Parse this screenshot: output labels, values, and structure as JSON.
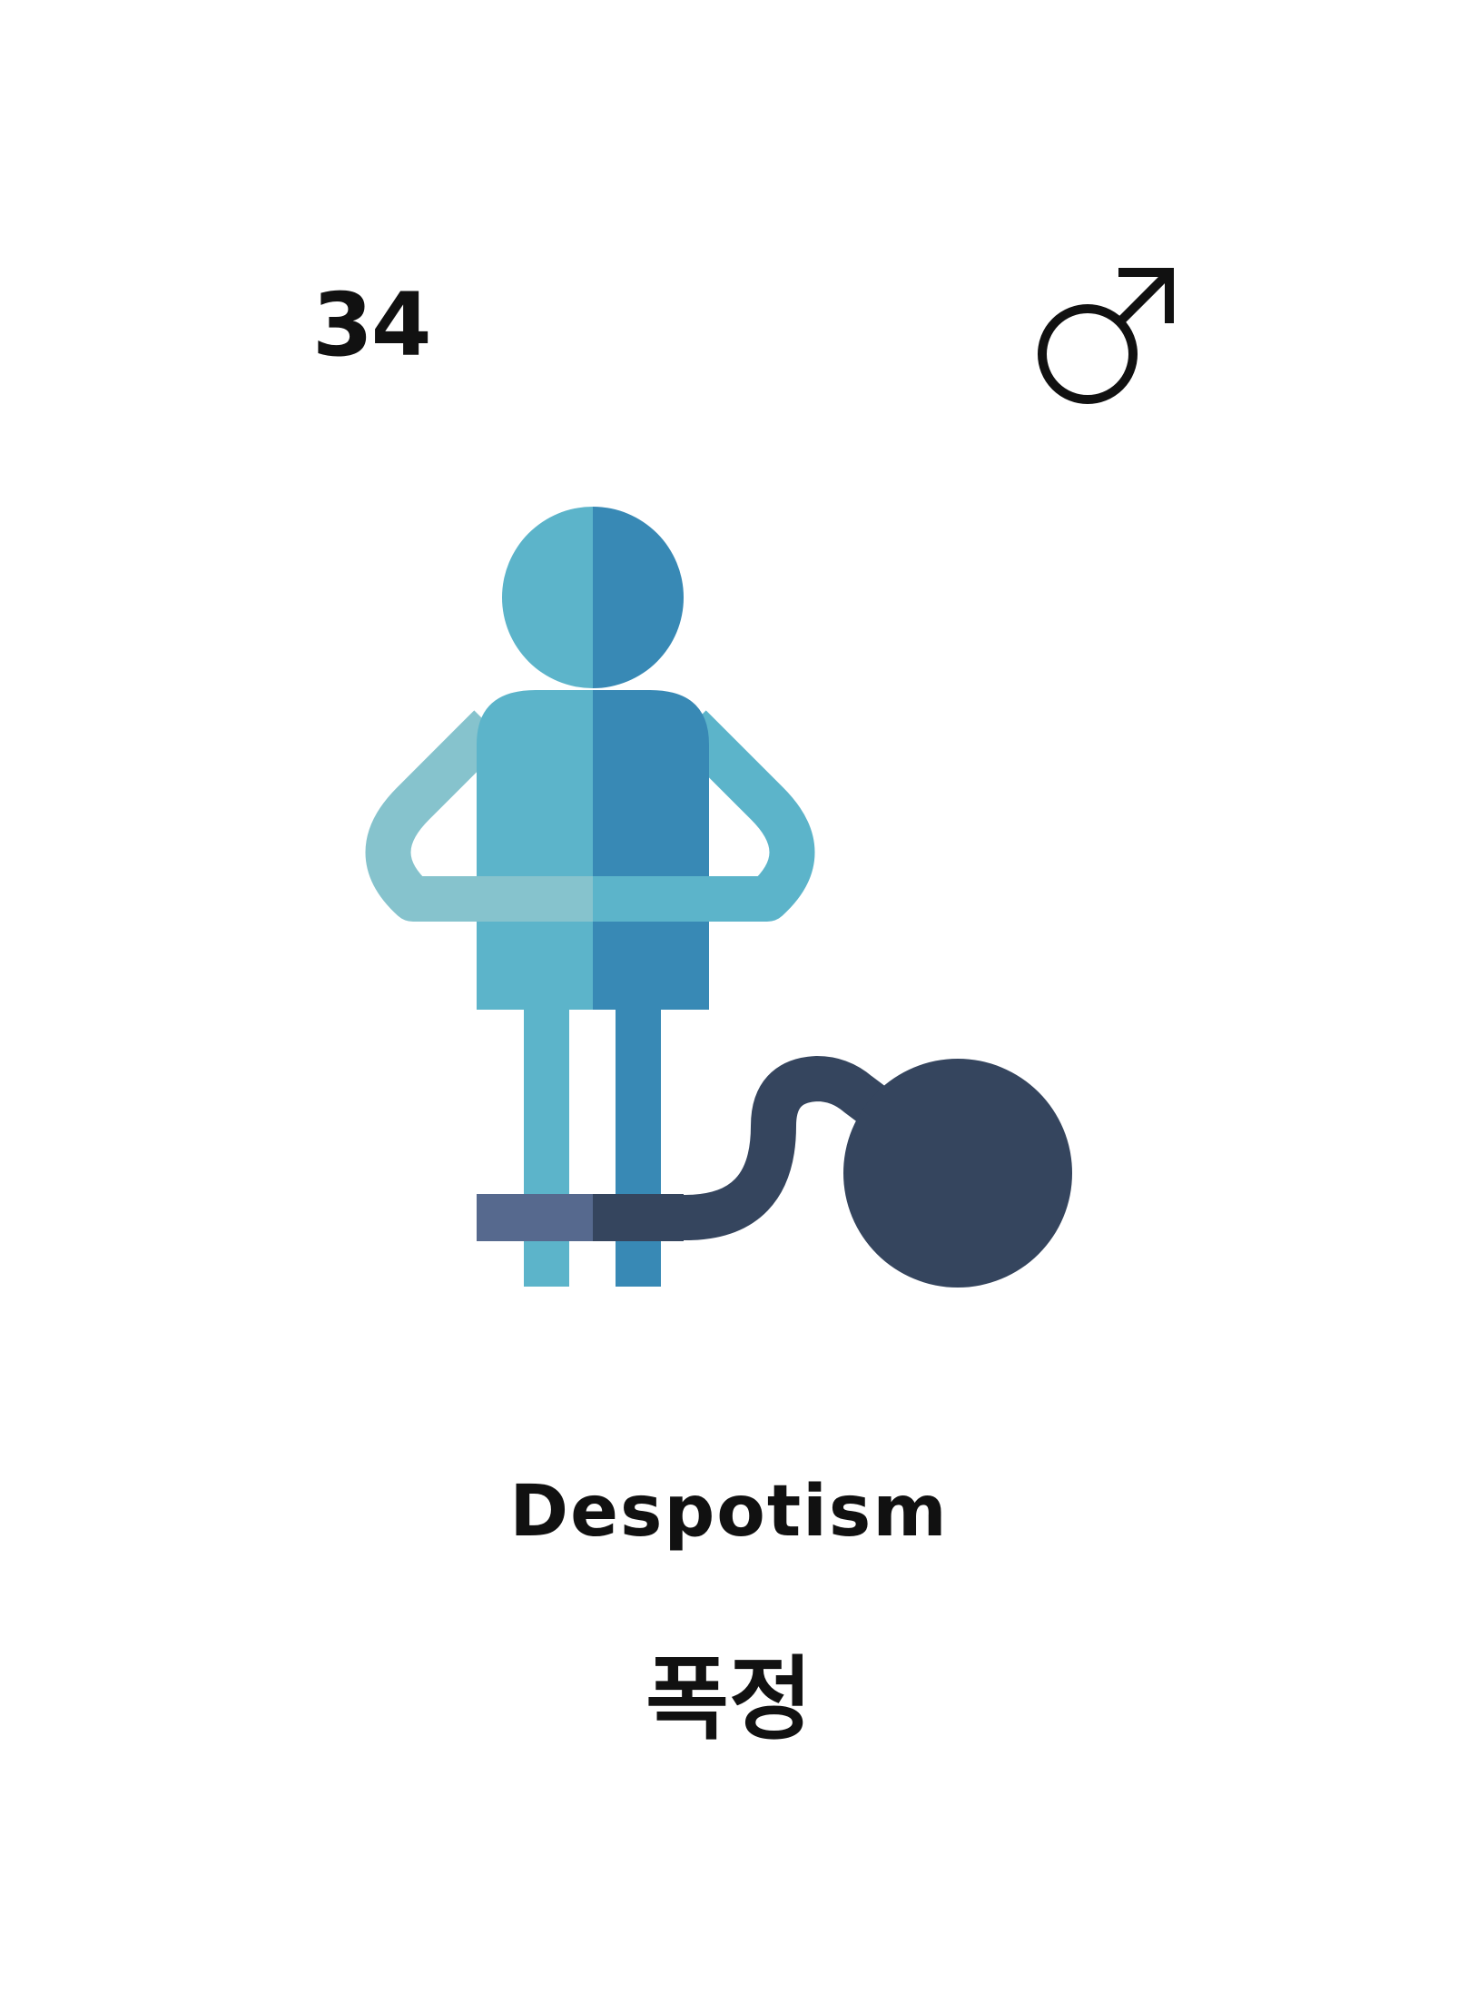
{
  "card": {
    "number": "34",
    "gender_icon": "male-symbol-icon",
    "title_en": "Despotism",
    "title_ko": "폭정",
    "illustration_icon": "shackled-person-icon"
  },
  "colors": {
    "light_blue": "#5CB4CA",
    "dark_blue": "#3889B5",
    "arm_light": "#86C3CD",
    "chain_left": "#56698E",
    "ball_navy": "#35455E",
    "text": "#111111"
  }
}
